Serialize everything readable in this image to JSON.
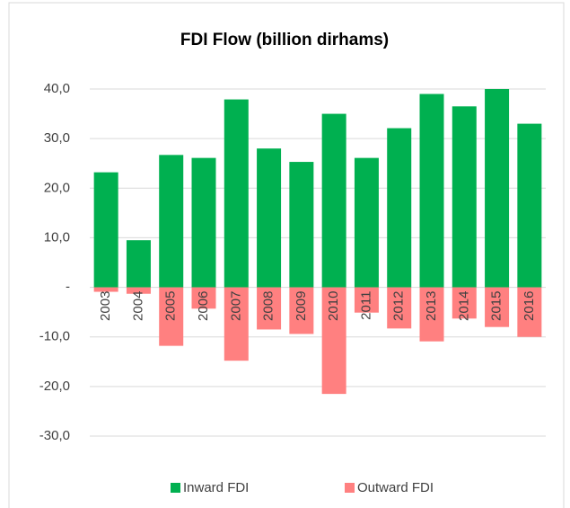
{
  "chart_data": {
    "type": "bar",
    "title": "FDI Flow (billion dirhams)",
    "categories": [
      "2003",
      "2004",
      "2005",
      "2006",
      "2007",
      "2008",
      "2009",
      "2010",
      "2011",
      "2012",
      "2013",
      "2014",
      "2015",
      "2016"
    ],
    "series": [
      {
        "name": "Inward FDI",
        "color": "#00b050",
        "values": [
          23.2,
          9.5,
          26.7,
          26.1,
          37.9,
          28.0,
          25.3,
          35.0,
          26.1,
          32.1,
          39.0,
          36.5,
          40.0,
          33.0
        ]
      },
      {
        "name": "Outward FDI",
        "color": "#ff8080",
        "values": [
          -0.9,
          -1.3,
          -11.8,
          -4.3,
          -14.8,
          -8.5,
          -9.4,
          -21.5,
          -5.1,
          -8.3,
          -10.9,
          -6.3,
          -8.0,
          -10.0
        ]
      }
    ],
    "ylim": [
      -30,
      40
    ],
    "yticks": [
      {
        "value": -30,
        "label": "-30,0"
      },
      {
        "value": -20,
        "label": "-20,0"
      },
      {
        "value": -10,
        "label": "-10,0"
      },
      {
        "value": 0,
        "label": "-"
      },
      {
        "value": 10,
        "label": "10,0"
      },
      {
        "value": 20,
        "label": "20,0"
      },
      {
        "value": 30,
        "label": "30,0"
      },
      {
        "value": 40,
        "label": "40,0"
      }
    ],
    "grid": true,
    "legend": "bottom"
  }
}
